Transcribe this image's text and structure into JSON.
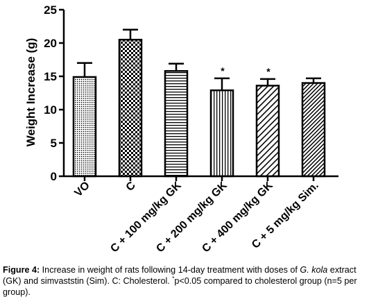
{
  "chart_data": {
    "type": "bar",
    "ylabel": "Weight Increase (g)",
    "ylim": [
      0,
      25
    ],
    "yticks": [
      0,
      5,
      10,
      15,
      20,
      25
    ],
    "categories": [
      "VO",
      "C",
      "C + 100 mg/kg GK",
      "C + 200 mg/kg GK",
      "C + 400 mg/kg GK",
      "C + 5 mg/kg Sim."
    ],
    "values": [
      14.9,
      20.5,
      15.8,
      12.9,
      13.6,
      14.0
    ],
    "errors": [
      2.1,
      1.5,
      1.1,
      1.8,
      1.0,
      0.7
    ],
    "annotations": [
      "",
      "",
      "",
      "*",
      "*",
      ""
    ],
    "patterns": [
      "dots",
      "checker",
      "horizontal",
      "vertical",
      "diagonal-light",
      "diagonal-dense"
    ]
  },
  "caption": {
    "label": "Figure 4:",
    "part1": " Increase in weight of rats following 14-day treatment with doses of ",
    "species": "G. kola",
    "part2": " extract (GK) and simvaststin (Sim). C: Cholesterol. ",
    "star": "*",
    "part3": "p<0.05 compared to cholesterol group (n=5 per group)."
  }
}
